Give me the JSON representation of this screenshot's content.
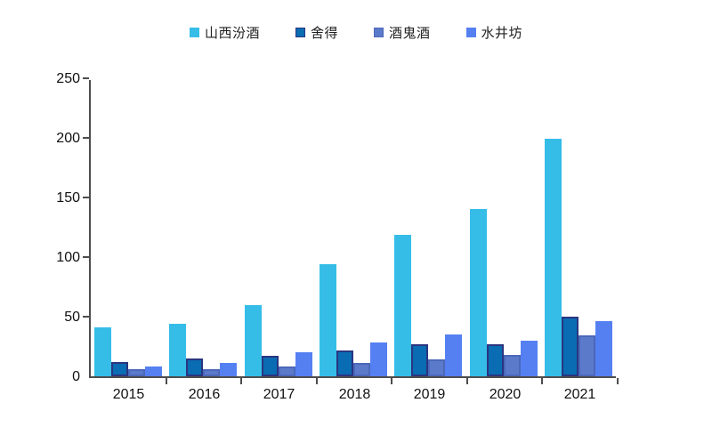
{
  "chart_data": {
    "type": "bar",
    "title": "",
    "xlabel": "",
    "ylabel": "",
    "categories": [
      "2015",
      "2016",
      "2017",
      "2018",
      "2019",
      "2020",
      "2021"
    ],
    "series": [
      {
        "name": "山西汾酒",
        "color": "#35BDE8",
        "border_color": "#35BDE8",
        "values": [
          41,
          44,
          60,
          94,
          119,
          140,
          199
        ]
      },
      {
        "name": "舍得",
        "color": "#0A6CB2",
        "border_color": "#2A3580",
        "values": [
          12,
          15,
          17,
          22,
          27,
          27,
          50
        ]
      },
      {
        "name": "酒鬼酒",
        "color": "#5B7AC9",
        "border_color": "#4C68BA",
        "values": [
          6,
          6,
          8,
          11,
          14,
          18,
          34
        ]
      },
      {
        "name": "水井坊",
        "color": "#5480F2",
        "border_color": "#5480F2",
        "values": [
          8,
          11,
          20,
          28,
          35,
          30,
          46
        ]
      }
    ],
    "ylim": [
      0,
      250
    ],
    "y_ticks": [
      0,
      50,
      100,
      150,
      200,
      250
    ],
    "grid": false,
    "legend_position": "top",
    "axis_color": "#4d4d4d",
    "background_color": "#ffffff"
  }
}
